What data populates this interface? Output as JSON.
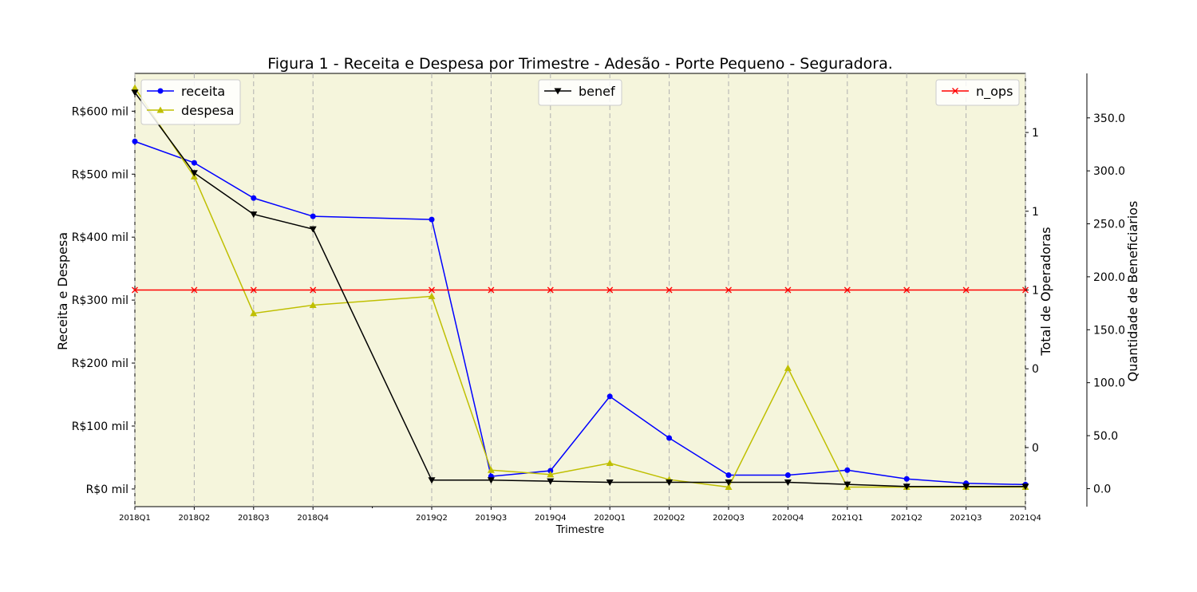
{
  "chart_data": {
    "type": "line",
    "title": "Figura 1 - Receita e Despesa por Trimestre - Adesão - Porte Pequeno - Seguradora.",
    "xlabel": "Trimestre",
    "ylabel_left": "Receita e Despesa",
    "ylabel_right": "Total de Operadoras",
    "ylabel_far_right": "Quantidade de Beneficiarios",
    "x": [
      "2018Q1",
      "2018Q2",
      "2018Q3",
      "2018Q4",
      "2019Q2",
      "2019Q3",
      "2019Q4",
      "2020Q1",
      "2020Q2",
      "2020Q3",
      "2020Q4",
      "2021Q1",
      "2021Q2",
      "2021Q3",
      "2021Q4"
    ],
    "left_axis": {
      "ylim": [
        -28,
        660
      ],
      "ticks": [
        0,
        100,
        200,
        300,
        400,
        500,
        600
      ],
      "tick_labels": [
        "R$0 mil",
        "R$100 mil",
        "R$200 mil",
        "R$300 mil",
        "R$400 mil",
        "R$500 mil",
        "R$600 mil"
      ],
      "series": [
        {
          "name": "receita",
          "color": "#0000ff",
          "marker": "circle",
          "values": [
            552,
            518,
            462,
            433,
            428,
            20,
            29,
            147,
            81,
            22,
            22,
            30,
            16,
            9,
            7
          ]
        },
        {
          "name": "despesa",
          "color": "#bfbf00",
          "marker": "triangle-up",
          "values": [
            637,
            496,
            279,
            292,
            306,
            30,
            23,
            41,
            15,
            3,
            192,
            3,
            3,
            3,
            3
          ]
        }
      ]
    },
    "right_axis": {
      "ylim": [
        0.945,
        1.055
      ],
      "ticks": [
        0.96,
        0.98,
        1.0,
        1.02,
        1.04
      ],
      "tick_labels": [
        "0",
        "0",
        "1",
        "1",
        "1"
      ],
      "series": [
        {
          "name": "n_ops",
          "color": "#ff0000",
          "marker": "x",
          "values": [
            1,
            1,
            1,
            1,
            1,
            1,
            1,
            1,
            1,
            1,
            1,
            1,
            1,
            1,
            1
          ]
        }
      ]
    },
    "far_right_axis": {
      "ylim": [
        -17,
        392
      ],
      "ticks": [
        0,
        50,
        100,
        150,
        200,
        250,
        300,
        350
      ],
      "tick_labels": [
        "0.0",
        "50.0",
        "100.0",
        "150.0",
        "200.0",
        "250.0",
        "300.0",
        "350.0"
      ],
      "series": [
        {
          "name": "benef",
          "color": "#000000",
          "marker": "triangle-down",
          "values": [
            374,
            298,
            259,
            245,
            8,
            8,
            7,
            6,
            6,
            6,
            6,
            4,
            2,
            2,
            2
          ]
        }
      ]
    },
    "grid": "vertical dashed",
    "legends": [
      "upper-left",
      "upper-center",
      "upper-right"
    ]
  }
}
